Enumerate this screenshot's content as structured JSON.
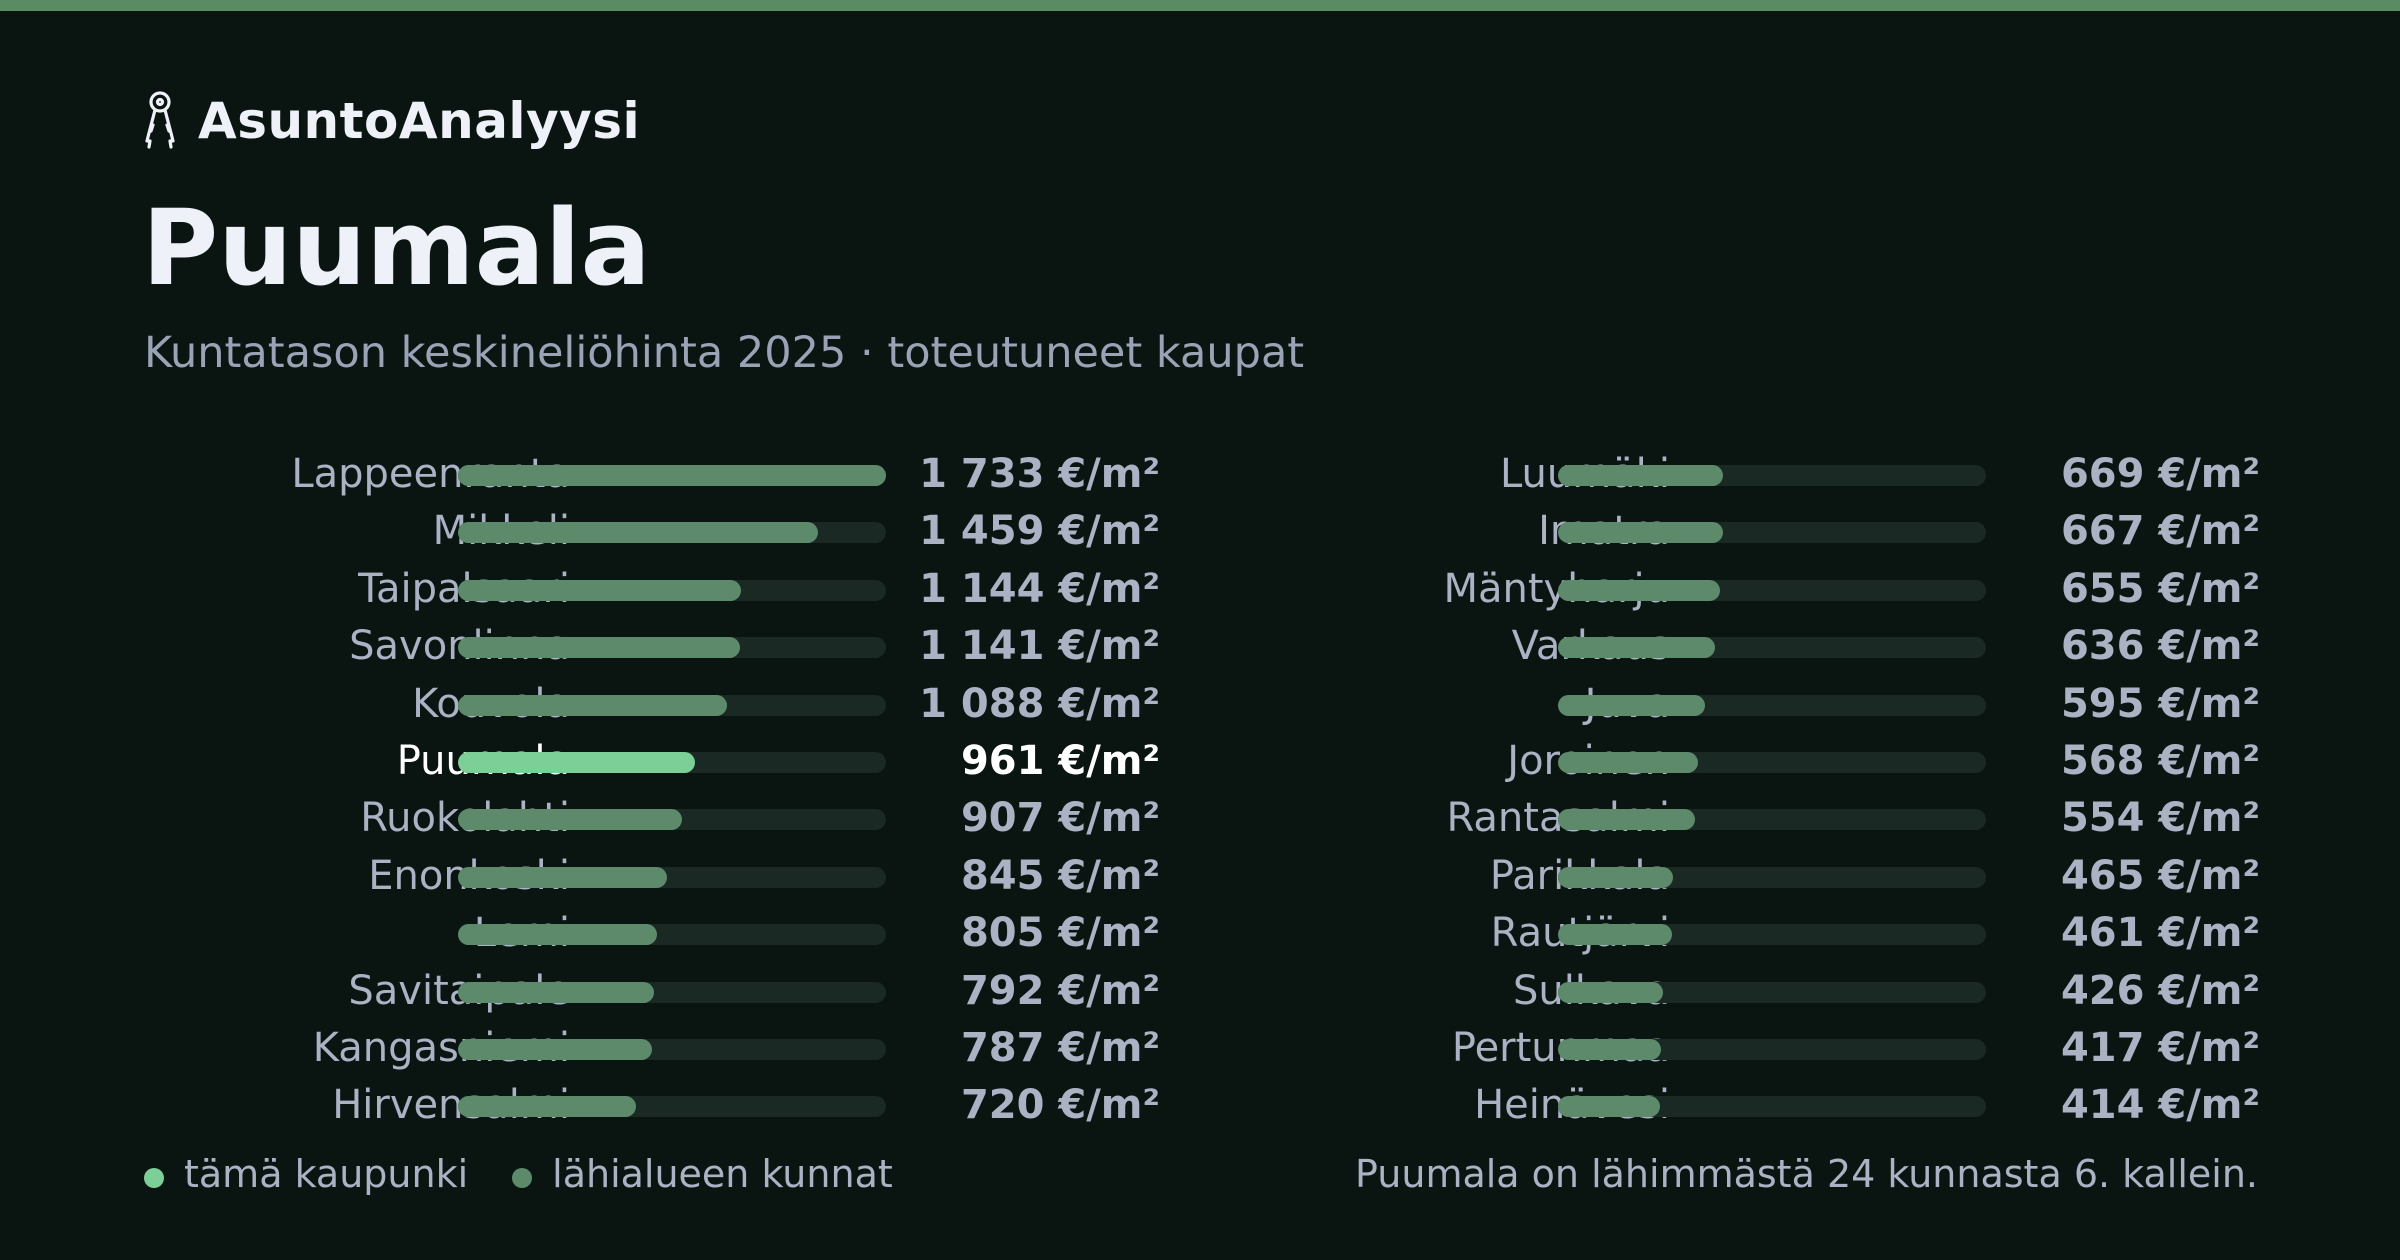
{
  "header": {
    "brand_name": "AsuntoAnalyysi",
    "brand_icon": "keys-icon",
    "title": "Puumala",
    "subtitle": "Kuntatason keskineliöhinta 2025 · toteutuneet kaupat"
  },
  "colors": {
    "highlight": "#7dcf98",
    "neighbor": "#5e8a6c",
    "track": "#1a2923",
    "background": "#0a1512",
    "accent_strip": "#5a8c64"
  },
  "legend": {
    "highlight_label": "tämä kaupunki",
    "neighbor_label": "lähialueen kunnat"
  },
  "footnote": "Puumala on lähimmästä 24 kunnasta 6. kallein.",
  "chart_data": {
    "type": "bar",
    "orientation": "horizontal",
    "unit": "€/m²",
    "xlim": [
      0,
      1733
    ],
    "highlight": "Puumala",
    "categories": [
      "Lappeenranta",
      "Mikkeli",
      "Taipalsaari",
      "Savonlinna",
      "Kouvola",
      "Puumala",
      "Ruokolahti",
      "Enonkoski",
      "Lemi",
      "Savitaipale",
      "Kangasniemi",
      "Hirvensalmi",
      "Luumäki",
      "Imatra",
      "Mäntyharju",
      "Varkaus",
      "Juva",
      "Joroinen",
      "Rantasalmi",
      "Parikkala",
      "Rautjärvi",
      "Sulkava",
      "Pertunmaa",
      "Heinävesi"
    ],
    "values": [
      1733,
      1459,
      1144,
      1141,
      1088,
      961,
      907,
      845,
      805,
      792,
      787,
      720,
      669,
      667,
      655,
      636,
      595,
      568,
      554,
      465,
      461,
      426,
      417,
      414
    ],
    "labels": [
      "1 733 €/m²",
      "1 459 €/m²",
      "1 144 €/m²",
      "1 141 €/m²",
      "1 088 €/m²",
      "961 €/m²",
      "907 €/m²",
      "845 €/m²",
      "805 €/m²",
      "792 €/m²",
      "787 €/m²",
      "720 €/m²",
      "669 €/m²",
      "667 €/m²",
      "655 €/m²",
      "636 €/m²",
      "595 €/m²",
      "568 €/m²",
      "554 €/m²",
      "465 €/m²",
      "461 €/m²",
      "426 €/m²",
      "417 €/m²",
      "414 €/m²"
    ]
  }
}
